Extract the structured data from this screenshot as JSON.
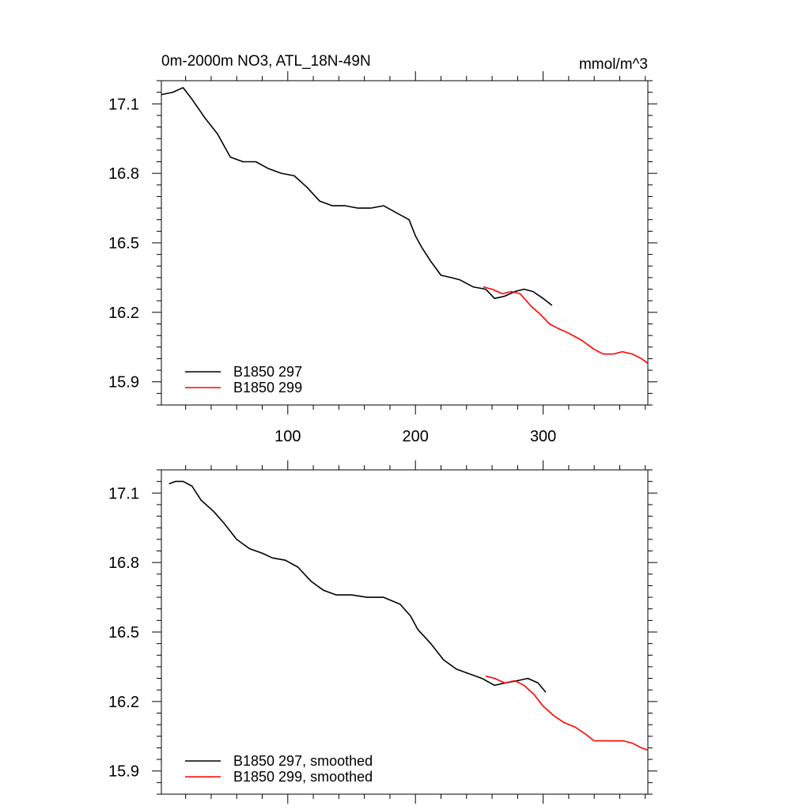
{
  "figure": {
    "title_left": "0m-2000m NO3, ATL_18N-49N",
    "title_right": "mmol/m^3"
  },
  "chart_data": [
    {
      "type": "line",
      "panel": "top",
      "title": "0m-2000m NO3, ATL_18N-49N",
      "units": "mmol/m^3",
      "xlim": [
        1,
        382
      ],
      "ylim": [
        15.8,
        17.2
      ],
      "x_ticks": [
        100,
        200,
        300
      ],
      "x_tick_labels": [
        "100",
        "200",
        "300"
      ],
      "y_ticks": [
        15.9,
        16.2,
        16.5,
        16.8,
        17.1
      ],
      "y_tick_labels": [
        "15.9",
        "16.2",
        "16.5",
        "16.8",
        "17.1"
      ],
      "legend_placement": "bottom-left",
      "grid": false,
      "series": [
        {
          "name": "B1850 297",
          "color": "#000000",
          "x": [
            1,
            10,
            18,
            25,
            35,
            45,
            55,
            65,
            75,
            85,
            95,
            105,
            115,
            125,
            135,
            145,
            155,
            165,
            175,
            185,
            195,
            200,
            205,
            212,
            220,
            228,
            235,
            245,
            255,
            262,
            270,
            278,
            285,
            292,
            300,
            307
          ],
          "y": [
            17.14,
            17.15,
            17.17,
            17.12,
            17.04,
            16.97,
            16.87,
            16.85,
            16.85,
            16.82,
            16.8,
            16.79,
            16.74,
            16.68,
            16.66,
            16.66,
            16.65,
            16.65,
            16.66,
            16.63,
            16.6,
            16.53,
            16.48,
            16.42,
            16.36,
            16.35,
            16.34,
            16.31,
            16.3,
            16.26,
            16.27,
            16.29,
            16.3,
            16.29,
            16.26,
            16.23
          ]
        },
        {
          "name": "B1850 299",
          "color": "#ff0000",
          "x": [
            253,
            260,
            268,
            275,
            282,
            290,
            298,
            305,
            312,
            320,
            330,
            340,
            347,
            355,
            362,
            370,
            377,
            382
          ],
          "y": [
            16.31,
            16.3,
            16.28,
            16.29,
            16.28,
            16.23,
            16.19,
            16.15,
            16.13,
            16.11,
            16.08,
            16.04,
            16.02,
            16.02,
            16.03,
            16.02,
            16.0,
            15.98
          ]
        }
      ]
    },
    {
      "type": "line",
      "panel": "bottom",
      "xlim": [
        1,
        382
      ],
      "ylim": [
        15.8,
        17.2
      ],
      "y_ticks": [
        15.9,
        16.2,
        16.5,
        16.8,
        17.1
      ],
      "y_tick_labels": [
        "15.9",
        "16.2",
        "16.5",
        "16.8",
        "17.1"
      ],
      "legend_placement": "bottom-left",
      "grid": false,
      "series": [
        {
          "name": "B1850 297, smoothed",
          "color": "#000000",
          "x": [
            7,
            12,
            18,
            25,
            32,
            42,
            50,
            60,
            70,
            80,
            88,
            98,
            108,
            118,
            128,
            138,
            150,
            162,
            175,
            188,
            196,
            202,
            212,
            222,
            232,
            242,
            252,
            262,
            270,
            280,
            288,
            296,
            302
          ],
          "y": [
            17.14,
            17.15,
            17.15,
            17.13,
            17.07,
            17.02,
            16.97,
            16.9,
            16.86,
            16.84,
            16.82,
            16.81,
            16.78,
            16.72,
            16.68,
            16.66,
            16.66,
            16.65,
            16.65,
            16.62,
            16.57,
            16.51,
            16.45,
            16.38,
            16.34,
            16.32,
            16.3,
            16.27,
            16.28,
            16.29,
            16.3,
            16.28,
            16.24
          ]
        },
        {
          "name": "B1850 299, smoothed",
          "color": "#ff0000",
          "x": [
            255,
            262,
            270,
            278,
            285,
            293,
            300,
            308,
            316,
            325,
            333,
            340,
            347,
            355,
            363,
            370,
            377,
            382
          ],
          "y": [
            16.31,
            16.3,
            16.28,
            16.29,
            16.27,
            16.23,
            16.18,
            16.14,
            16.11,
            16.09,
            16.06,
            16.03,
            16.03,
            16.03,
            16.03,
            16.02,
            16.0,
            15.99
          ]
        }
      ]
    }
  ]
}
